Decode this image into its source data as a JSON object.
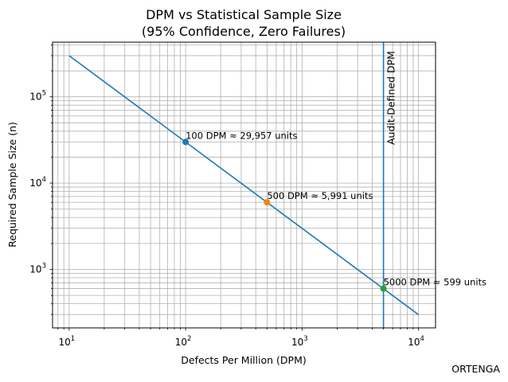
{
  "chart_data": {
    "type": "line",
    "title": "DPM vs Statistical Sample Size",
    "subtitle": "(95% Confidence, Zero Failures)",
    "xlabel": "Defects Per Million (DPM)",
    "ylabel": "Required Sample Size (n)",
    "xscale": "log",
    "yscale": "log",
    "xlim": [
      7.2,
      14000
    ],
    "ylim": [
      210,
      430000
    ],
    "grid": true,
    "x_ticks": [
      {
        "base": "10",
        "exp": "1"
      },
      {
        "base": "10",
        "exp": "2"
      },
      {
        "base": "10",
        "exp": "3"
      },
      {
        "base": "10",
        "exp": "4"
      }
    ],
    "y_ticks": [
      {
        "base": "10",
        "exp": "3"
      },
      {
        "base": "10",
        "exp": "4"
      },
      {
        "base": "10",
        "exp": "5"
      }
    ],
    "series": [
      {
        "x": [
          10,
          10000
        ],
        "y": [
          299572,
          299
        ],
        "color": "#1f77b4"
      }
    ],
    "highlight_points": [
      {
        "x": 100,
        "y": 29957,
        "color": "#1f77b4",
        "label": "100 DPM ≈ 29,957 units"
      },
      {
        "x": 500,
        "y": 5991,
        "color": "#ff7f0e",
        "label": "500 DPM ≈ 5,991 units"
      },
      {
        "x": 5000,
        "y": 599,
        "color": "#2ca02c",
        "label": "5000 DPM ≈ 599 units"
      }
    ],
    "vertical_line": {
      "x": 5000,
      "color": "#1f77b4",
      "label": "Audit-Defined DPM"
    }
  },
  "credit": "ORTENGA"
}
